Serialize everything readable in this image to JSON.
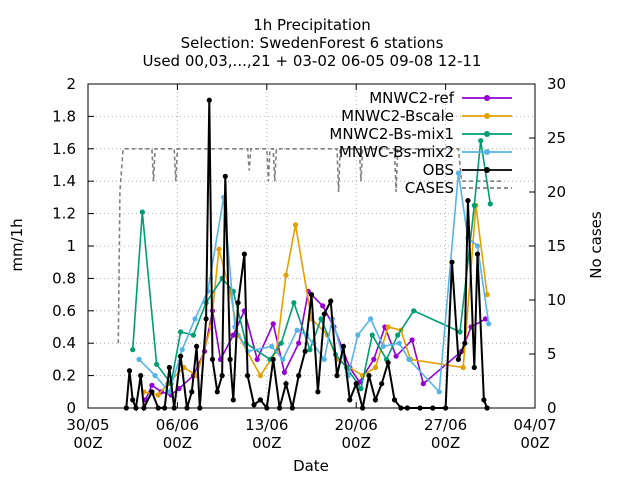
{
  "chart_data": {
    "type": "line",
    "title_lines": [
      "1h Precipitation",
      "Selection: SwedenForest      6 stations",
      "Used 00,03,...,21 + 03-02 06-05 09-08 12-11"
    ],
    "xlabel": "Date",
    "ylabel": "mm/1h",
    "y2label": "No cases",
    "xlim": [
      "2022-05-30T00:00",
      "2022-07-04T00:00"
    ],
    "ylim": [
      0,
      2
    ],
    "y2lim": [
      0,
      30
    ],
    "grid": true,
    "legend_position": "top-right",
    "x_ticks": [
      {
        "date": "2022-05-30T00:00",
        "label1": "30/05",
        "label2": "00Z"
      },
      {
        "date": "2022-06-06T00:00",
        "label1": "06/06",
        "label2": "00Z"
      },
      {
        "date": "2022-06-13T00:00",
        "label1": "13/06",
        "label2": "00Z"
      },
      {
        "date": "2022-06-20T00:00",
        "label1": "20/06",
        "label2": "00Z"
      },
      {
        "date": "2022-06-27T00:00",
        "label1": "27/06",
        "label2": "00Z"
      },
      {
        "date": "2022-07-04T00:00",
        "label1": "04/07",
        "label2": "00Z"
      }
    ],
    "y_ticks": [
      "0",
      "0.2",
      "0.4",
      "0.6",
      "0.8",
      "1",
      "1.2",
      "1.4",
      "1.6",
      "1.8",
      "2"
    ],
    "y2_ticks": [
      "0",
      "5",
      "10",
      "15",
      "20",
      "25",
      "30"
    ],
    "series": [
      {
        "name": "MNWC2-ref",
        "color": "#9400d3",
        "marker": "circle",
        "points": [
          [
            "2022-06-03T12:00",
            0.05
          ],
          [
            "2022-06-04T00:00",
            0.14
          ],
          [
            "2022-06-04T18:00",
            0.1
          ],
          [
            "2022-06-05T12:00",
            0.08
          ],
          [
            "2022-06-06T03:00",
            0.12
          ],
          [
            "2022-06-07T06:00",
            0.2
          ],
          [
            "2022-06-08T03:00",
            0.35
          ],
          [
            "2022-06-08T18:00",
            0.6
          ],
          [
            "2022-06-09T09:00",
            0.3
          ],
          [
            "2022-06-10T09:00",
            0.45
          ],
          [
            "2022-06-11T06:00",
            0.6
          ],
          [
            "2022-06-12T06:00",
            0.3
          ],
          [
            "2022-06-13T12:00",
            0.52
          ],
          [
            "2022-06-14T09:00",
            0.22
          ],
          [
            "2022-06-15T12:00",
            0.4
          ],
          [
            "2022-06-16T06:00",
            0.72
          ],
          [
            "2022-06-17T09:00",
            0.63
          ],
          [
            "2022-06-18T06:00",
            0.5
          ],
          [
            "2022-06-19T12:00",
            0.25
          ],
          [
            "2022-06-20T06:00",
            0.16
          ],
          [
            "2022-06-21T09:00",
            0.3
          ],
          [
            "2022-06-22T06:00",
            0.5
          ],
          [
            "2022-06-23T03:00",
            0.32
          ],
          [
            "2022-06-24T09:00",
            0.42
          ],
          [
            "2022-06-25T06:00",
            0.15
          ],
          [
            "2022-06-28T06:00",
            0.35
          ],
          [
            "2022-06-29T00:00",
            0.5
          ],
          [
            "2022-06-30T03:00",
            0.55
          ]
        ]
      },
      {
        "name": "MNWC2-Bscale",
        "color": "#e69f00",
        "marker": "circle",
        "points": [
          [
            "2022-06-03T09:00",
            0.1
          ],
          [
            "2022-06-04T12:00",
            0.08
          ],
          [
            "2022-06-05T06:00",
            0.15
          ],
          [
            "2022-06-06T12:00",
            0.25
          ],
          [
            "2022-06-07T12:00",
            0.2
          ],
          [
            "2022-06-08T15:00",
            0.5
          ],
          [
            "2022-06-09T06:00",
            0.98
          ],
          [
            "2022-06-10T03:00",
            0.72
          ],
          [
            "2022-06-10T18:00",
            0.45
          ],
          [
            "2022-06-12T12:00",
            0.2
          ],
          [
            "2022-06-13T18:00",
            0.35
          ],
          [
            "2022-06-14T12:00",
            0.82
          ],
          [
            "2022-06-15T06:00",
            1.13
          ],
          [
            "2022-06-16T12:00",
            0.55
          ],
          [
            "2022-06-17T18:00",
            0.45
          ],
          [
            "2022-06-18T12:00",
            0.3
          ],
          [
            "2022-06-20T12:00",
            0.2
          ],
          [
            "2022-06-21T12:00",
            0.25
          ],
          [
            "2022-06-22T12:00",
            0.5
          ],
          [
            "2022-06-23T12:00",
            0.48
          ],
          [
            "2022-06-24T06:00",
            0.3
          ],
          [
            "2022-06-28T09:00",
            0.25
          ],
          [
            "2022-06-29T09:00",
            1.25
          ],
          [
            "2022-06-30T06:00",
            0.7
          ]
        ]
      },
      {
        "name": "MNWC2-Bs-mix1",
        "color": "#009e73",
        "marker": "circle",
        "points": [
          [
            "2022-06-02T12:00",
            0.36
          ],
          [
            "2022-06-03T06:00",
            1.21
          ],
          [
            "2022-06-04T09:00",
            0.27
          ],
          [
            "2022-06-05T12:00",
            0.15
          ],
          [
            "2022-06-06T06:00",
            0.47
          ],
          [
            "2022-06-07T06:00",
            0.45
          ],
          [
            "2022-06-08T06:00",
            0.65
          ],
          [
            "2022-06-09T12:00",
            0.8
          ],
          [
            "2022-06-10T09:00",
            0.72
          ],
          [
            "2022-06-11T09:00",
            0.4
          ],
          [
            "2022-06-13T06:00",
            0.3
          ],
          [
            "2022-06-14T03:00",
            0.4
          ],
          [
            "2022-06-15T03:00",
            0.65
          ],
          [
            "2022-06-16T09:00",
            0.36
          ],
          [
            "2022-06-17T06:00",
            0.55
          ],
          [
            "2022-06-18T09:00",
            0.33
          ],
          [
            "2022-06-19T06:00",
            0.25
          ],
          [
            "2022-06-20T09:00",
            0.12
          ],
          [
            "2022-06-21T06:00",
            0.45
          ],
          [
            "2022-06-22T09:00",
            0.3
          ],
          [
            "2022-06-23T06:00",
            0.45
          ],
          [
            "2022-06-24T12:00",
            0.6
          ],
          [
            "2022-06-28T03:00",
            0.47
          ],
          [
            "2022-06-29T06:00",
            1.25
          ],
          [
            "2022-06-29T18:00",
            1.65
          ],
          [
            "2022-06-30T12:00",
            1.26
          ]
        ]
      },
      {
        "name": "MNWC-Bs-mix2",
        "color": "#56b4e9",
        "marker": "circle",
        "points": [
          [
            "2022-06-03T00:00",
            0.3
          ],
          [
            "2022-06-04T06:00",
            0.2
          ],
          [
            "2022-06-05T09:00",
            0.1
          ],
          [
            "2022-06-06T09:00",
            0.36
          ],
          [
            "2022-06-07T09:00",
            0.55
          ],
          [
            "2022-06-08T09:00",
            0.72
          ],
          [
            "2022-06-09T15:00",
            1.3
          ],
          [
            "2022-06-10T12:00",
            0.5
          ],
          [
            "2022-06-11T12:00",
            0.35
          ],
          [
            "2022-06-13T09:00",
            0.38
          ],
          [
            "2022-06-14T06:00",
            0.3
          ],
          [
            "2022-06-15T09:00",
            0.48
          ],
          [
            "2022-06-16T03:00",
            0.45
          ],
          [
            "2022-06-17T12:00",
            0.3
          ],
          [
            "2022-06-18T03:00",
            0.55
          ],
          [
            "2022-06-19T09:00",
            0.2
          ],
          [
            "2022-06-20T03:00",
            0.45
          ],
          [
            "2022-06-21T03:00",
            0.55
          ],
          [
            "2022-06-22T03:00",
            0.38
          ],
          [
            "2022-06-23T09:00",
            0.4
          ],
          [
            "2022-06-24T03:00",
            0.3
          ],
          [
            "2022-06-26T12:00",
            0.1
          ],
          [
            "2022-06-28T00:00",
            1.45
          ],
          [
            "2022-06-28T18:00",
            1.05
          ],
          [
            "2022-06-29T12:00",
            1.0
          ],
          [
            "2022-06-30T09:00",
            0.52
          ]
        ]
      },
      {
        "name": "OBS",
        "color": "#000000",
        "marker": "circle",
        "points": [
          [
            "2022-06-02T00:00",
            0.0
          ],
          [
            "2022-06-02T06:00",
            0.23
          ],
          [
            "2022-06-02T12:00",
            0.05
          ],
          [
            "2022-06-02T18:00",
            0.0
          ],
          [
            "2022-06-03T03:00",
            0.2
          ],
          [
            "2022-06-03T09:00",
            0.0
          ],
          [
            "2022-06-04T00:00",
            0.1
          ],
          [
            "2022-06-04T12:00",
            0.0
          ],
          [
            "2022-06-05T00:00",
            0.0
          ],
          [
            "2022-06-05T09:00",
            0.25
          ],
          [
            "2022-06-05T18:00",
            0.0
          ],
          [
            "2022-06-06T06:00",
            0.32
          ],
          [
            "2022-06-06T18:00",
            0.0
          ],
          [
            "2022-06-07T03:00",
            0.1
          ],
          [
            "2022-06-07T12:00",
            0.38
          ],
          [
            "2022-06-07T18:00",
            0.0
          ],
          [
            "2022-06-08T06:00",
            0.55
          ],
          [
            "2022-06-08T12:00",
            1.9
          ],
          [
            "2022-06-08T18:00",
            0.3
          ],
          [
            "2022-06-09T03:00",
            0.1
          ],
          [
            "2022-06-09T12:00",
            0.2
          ],
          [
            "2022-06-09T18:00",
            1.43
          ],
          [
            "2022-06-10T03:00",
            0.3
          ],
          [
            "2022-06-10T09:00",
            0.05
          ],
          [
            "2022-06-10T18:00",
            0.65
          ],
          [
            "2022-06-11T06:00",
            0.95
          ],
          [
            "2022-06-11T12:00",
            0.2
          ],
          [
            "2022-06-12T00:00",
            0.02
          ],
          [
            "2022-06-12T12:00",
            0.05
          ],
          [
            "2022-06-13T00:00",
            0.0
          ],
          [
            "2022-06-13T12:00",
            0.3
          ],
          [
            "2022-06-14T00:00",
            0.0
          ],
          [
            "2022-06-14T12:00",
            0.15
          ],
          [
            "2022-06-15T00:00",
            0.0
          ],
          [
            "2022-06-15T12:00",
            0.2
          ],
          [
            "2022-06-16T00:00",
            0.35
          ],
          [
            "2022-06-16T12:00",
            0.7
          ],
          [
            "2022-06-17T00:00",
            0.1
          ],
          [
            "2022-06-17T12:00",
            0.58
          ],
          [
            "2022-06-18T00:00",
            0.66
          ],
          [
            "2022-06-18T12:00",
            0.2
          ],
          [
            "2022-06-19T00:00",
            0.38
          ],
          [
            "2022-06-19T12:00",
            0.05
          ],
          [
            "2022-06-20T00:00",
            0.15
          ],
          [
            "2022-06-20T12:00",
            0.0
          ],
          [
            "2022-06-21T00:00",
            0.2
          ],
          [
            "2022-06-21T12:00",
            0.05
          ],
          [
            "2022-06-22T00:00",
            0.15
          ],
          [
            "2022-06-22T12:00",
            0.28
          ],
          [
            "2022-06-23T00:00",
            0.05
          ],
          [
            "2022-06-23T12:00",
            0.0
          ],
          [
            "2022-06-24T00:00",
            0.0
          ],
          [
            "2022-06-25T00:00",
            0.0
          ],
          [
            "2022-06-26T00:00",
            0.0
          ],
          [
            "2022-06-27T00:00",
            0.0
          ],
          [
            "2022-06-27T12:00",
            0.9
          ],
          [
            "2022-06-28T00:00",
            0.3
          ],
          [
            "2022-06-28T12:00",
            0.4
          ],
          [
            "2022-06-28T18:00",
            1.28
          ],
          [
            "2022-06-29T06:00",
            0.25
          ],
          [
            "2022-06-29T12:00",
            0.95
          ],
          [
            "2022-06-30T00:00",
            0.05
          ],
          [
            "2022-06-30T06:00",
            0.0
          ]
        ]
      }
    ],
    "cases_series": {
      "name": "CASES",
      "color": "#808080",
      "axis": "y2",
      "points": [
        [
          "2022-06-01T09:00",
          6
        ],
        [
          "2022-06-01T12:00",
          20
        ],
        [
          "2022-06-01T18:00",
          24
        ],
        [
          "2022-06-04T00:00",
          24
        ],
        [
          "2022-06-04T03:00",
          21
        ],
        [
          "2022-06-04T06:00",
          24
        ],
        [
          "2022-06-05T18:00",
          24
        ],
        [
          "2022-06-05T21:00",
          21
        ],
        [
          "2022-06-06T00:00",
          24
        ],
        [
          "2022-06-11T12:00",
          24
        ],
        [
          "2022-06-11T15:00",
          22
        ],
        [
          "2022-06-11T18:00",
          24
        ],
        [
          "2022-06-13T00:00",
          24
        ],
        [
          "2022-06-13T03:00",
          21
        ],
        [
          "2022-06-13T06:00",
          24
        ],
        [
          "2022-06-13T12:00",
          24
        ],
        [
          "2022-06-13T15:00",
          21
        ],
        [
          "2022-06-13T18:00",
          24
        ],
        [
          "2022-06-18T12:00",
          24
        ],
        [
          "2022-06-18T15:00",
          20
        ],
        [
          "2022-06-18T18:00",
          24
        ],
        [
          "2022-06-20T06:00",
          24
        ],
        [
          "2022-06-20T09:00",
          21
        ],
        [
          "2022-06-20T12:00",
          24
        ],
        [
          "2022-06-23T00:00",
          24
        ],
        [
          "2022-06-23T03:00",
          20
        ],
        [
          "2022-06-23T06:00",
          24
        ],
        [
          "2022-06-28T00:00",
          24
        ],
        [
          "2022-06-28T06:00",
          21
        ],
        [
          "2022-07-01T12:00",
          21
        ]
      ]
    }
  }
}
